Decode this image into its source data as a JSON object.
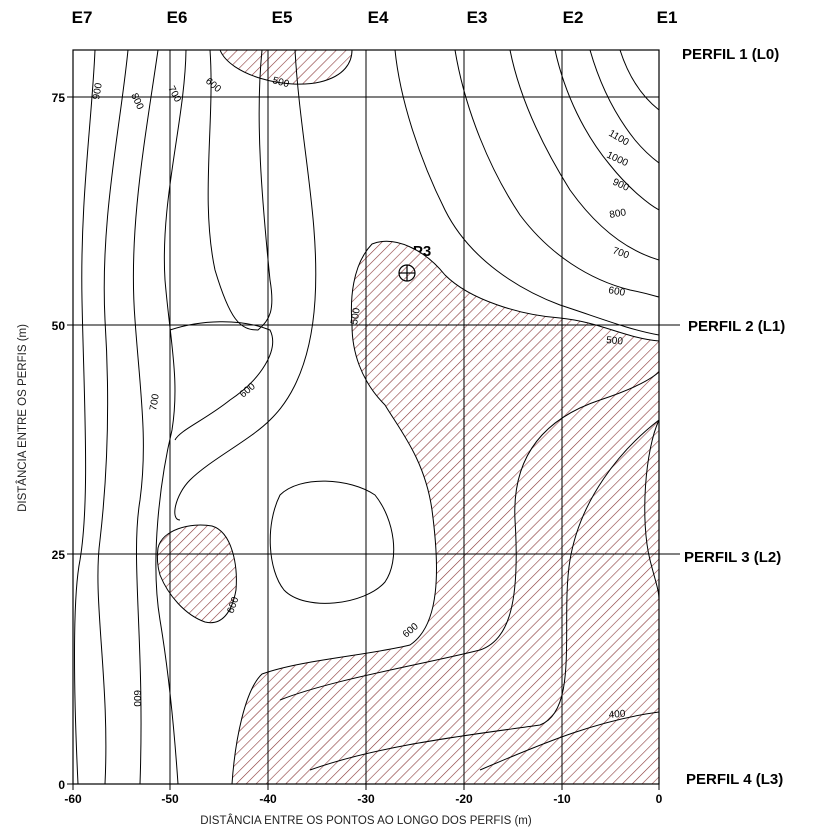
{
  "stations": [
    "E7",
    "E6",
    "E5",
    "E4",
    "E3",
    "E2",
    "E1"
  ],
  "profiles": [
    "PERFIL 1 (L0)",
    "PERFIL 2 (L1)",
    "PERFIL 3 (L2)",
    "PERFIL 4 (L3)"
  ],
  "axes": {
    "x_label": "DISTÂNCIA ENTRE OS PONTOS AO LONGO DOS PERFIS (m)",
    "y_label": "DISTÂNCIA ENTRE OS PERFIS (m)",
    "x_ticks": [
      "-60",
      "-50",
      "-40",
      "-30",
      "-20",
      "-10",
      "0"
    ],
    "y_ticks": [
      "0",
      "25",
      "50",
      "75"
    ],
    "x_range": [
      -60,
      0
    ],
    "y_range": [
      0,
      80
    ]
  },
  "well": {
    "label": "Poço P3",
    "x": -26,
    "y": 56
  },
  "contour_labels": [
    "900",
    "800",
    "700",
    "600",
    "500",
    "1100",
    "1000",
    "900",
    "800",
    "700",
    "600",
    "500",
    "500",
    "700",
    "600",
    "600",
    "600",
    "600",
    "400"
  ],
  "colors": {
    "contour": "#000000",
    "hatch": "#8b3a3a"
  }
}
